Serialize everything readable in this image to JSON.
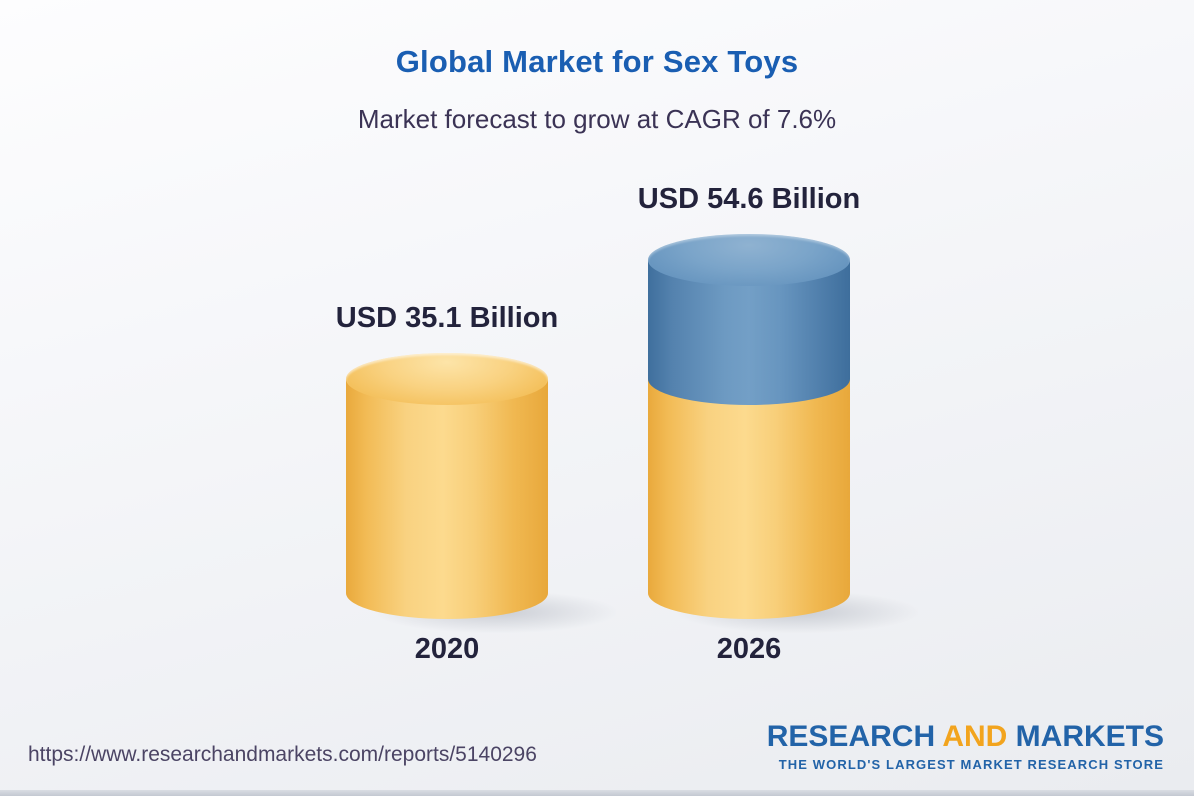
{
  "header": {
    "title": "Global Market for Sex Toys",
    "subtitle": "Market forecast to grow at CAGR of 7.6%"
  },
  "chart_data": {
    "type": "bar",
    "bar_style": "3d-cylinder",
    "categories": [
      "2020",
      "2026"
    ],
    "values": [
      35.1,
      54.6
    ],
    "unit": "USD Billion",
    "value_labels": [
      "USD 35.1 Billion",
      "USD 54.6 Billion"
    ],
    "cagr_percent": 7.6,
    "legend_position": "none",
    "grid": false,
    "colors": {
      "base_segment": "#F5C468",
      "growth_segment": "#6F9DC5",
      "title": "#1A5EB2",
      "subtitle": "#3B3355",
      "labels": "#23233C"
    },
    "notes": "2026 cylinder is stacked: yellow base equals the 2020 value (35.1) and the blue top segment is the growth to 54.6"
  },
  "footer": {
    "report_url": "https://www.researchandmarkets.com/reports/5140296",
    "logo": {
      "word1": "RESEARCH ",
      "word2": "AND",
      "word3": " MARKETS",
      "tagline": "THE WORLD'S LARGEST MARKET RESEARCH STORE",
      "blue": "#2263A8",
      "orange": "#F2A41E"
    }
  }
}
